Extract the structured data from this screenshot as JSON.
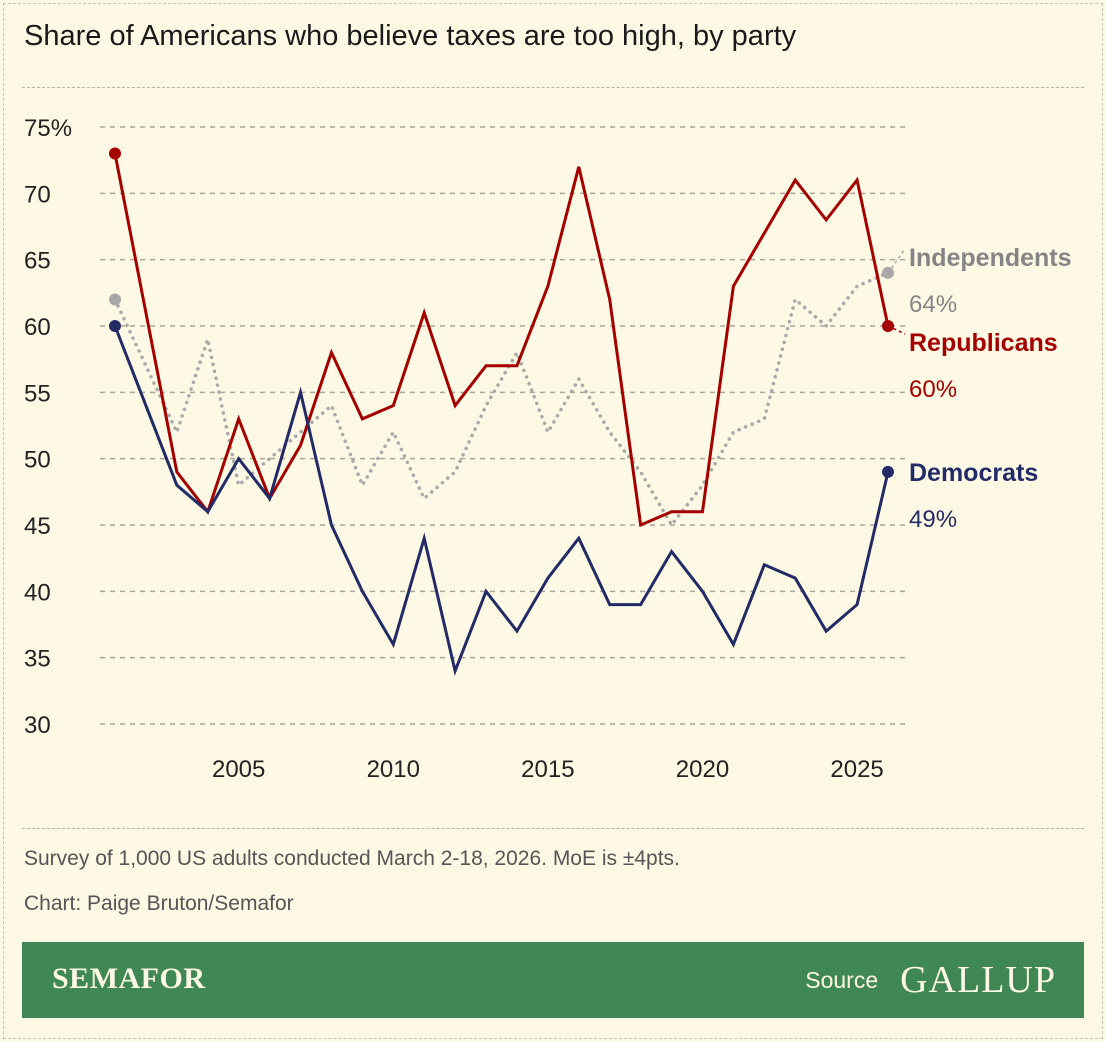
{
  "title": "Share of Americans who believe taxes are too high, by party",
  "notes": {
    "survey": "Survey of 1,000 US adults conducted March 2-18, 2026. MoE is ±4pts.",
    "credit": "Chart: Paige Bruton/Semafor"
  },
  "footer": {
    "brand": "SEMAFOR",
    "source_label": "Source",
    "source": "GALLUP"
  },
  "colors": {
    "background": "#fdf9e5",
    "republicans": "#a50000",
    "democrats": "#232b66",
    "independents": "#a8a8a8",
    "footer": "#3f8753"
  },
  "chart_data": {
    "type": "line",
    "ylim": [
      30,
      75
    ],
    "yticks": [
      30,
      35,
      40,
      45,
      50,
      55,
      60,
      65,
      70,
      75
    ],
    "ytick_labels": [
      "30",
      "35",
      "40",
      "45",
      "50",
      "55",
      "60",
      "65",
      "70",
      "75%"
    ],
    "xlim": [
      2001,
      2026
    ],
    "xticks": [
      2005,
      2010,
      2015,
      2020,
      2025
    ],
    "grid": true,
    "x": [
      2001,
      2003,
      2004,
      2005,
      2006,
      2007,
      2008,
      2009,
      2010,
      2011,
      2012,
      2013,
      2014,
      2015,
      2016,
      2017,
      2018,
      2019,
      2020,
      2021,
      2022,
      2023,
      2024,
      2025,
      2026
    ],
    "series": [
      {
        "name": "Independents",
        "end_label": "64%",
        "color": "#a8a8a8",
        "style": "dotted",
        "values": [
          62,
          52,
          59,
          48,
          50,
          52,
          54,
          48,
          52,
          47,
          49,
          54,
          58,
          52,
          56,
          52,
          49,
          45,
          48,
          52,
          53,
          62,
          60,
          63,
          64
        ]
      },
      {
        "name": "Republicans",
        "end_label": "60%",
        "color": "#a50000",
        "style": "solid",
        "values": [
          73,
          49,
          46,
          53,
          47,
          51,
          58,
          53,
          54,
          61,
          54,
          57,
          57,
          63,
          72,
          62,
          45,
          46,
          46,
          63,
          67,
          71,
          68,
          71,
          60
        ]
      },
      {
        "name": "Democrats",
        "end_label": "49%",
        "color": "#232b66",
        "style": "solid",
        "values": [
          60,
          48,
          46,
          50,
          47,
          55,
          45,
          40,
          36,
          44,
          34,
          40,
          37,
          41,
          44,
          39,
          39,
          43,
          40,
          36,
          42,
          41,
          37,
          39,
          49
        ]
      }
    ]
  }
}
